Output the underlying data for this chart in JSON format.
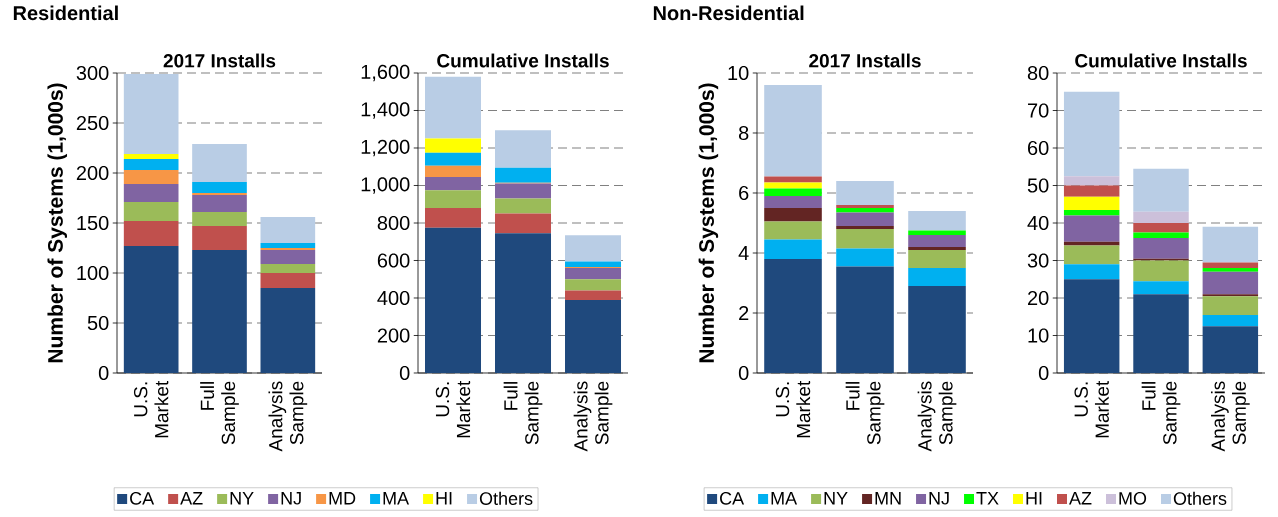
{
  "chart_data": [
    {
      "type": "bar",
      "stacked": true,
      "title": "2017 Installs",
      "ylabel": "Number of Systems (1,000s)",
      "annotations": [
        "Residential"
      ],
      "categories": [
        "U.S. Market",
        "Full Sample",
        "Analysis Sample"
      ],
      "ylim": [
        0,
        300
      ],
      "yticks": [
        0,
        50,
        100,
        150,
        200,
        250,
        300
      ],
      "grid": "y",
      "legend": "bottom",
      "series": [
        {
          "name": "CA",
          "color": "#1f497d",
          "values": [
            127,
            123,
            85
          ]
        },
        {
          "name": "AZ",
          "color": "#c0504d",
          "values": [
            25,
            24,
            15
          ]
        },
        {
          "name": "NY",
          "color": "#9bbb59",
          "values": [
            19,
            14,
            9
          ]
        },
        {
          "name": "NJ",
          "color": "#8064a2",
          "values": [
            18,
            17,
            14
          ]
        },
        {
          "name": "MD",
          "color": "#f79646",
          "values": [
            14,
            2,
            2
          ]
        },
        {
          "name": "MA",
          "color": "#00b0f0",
          "values": [
            11,
            11,
            5
          ]
        },
        {
          "name": "HI",
          "color": "#ffff00",
          "values": [
            5,
            0,
            0
          ]
        },
        {
          "name": "Others",
          "color": "#b9cde5",
          "values": [
            80,
            38,
            26
          ]
        }
      ]
    },
    {
      "type": "bar",
      "stacked": true,
      "title": "Cumulative Installs",
      "categories": [
        "U.S. Market",
        "Full Sample",
        "Analysis Sample"
      ],
      "ylim": [
        0,
        1600
      ],
      "yticks": [
        0,
        200,
        400,
        600,
        800,
        {
          "value": 1000,
          "label": "1,000"
        },
        {
          "value": 1200,
          "label": "1,200"
        },
        {
          "value": 1400,
          "label": "1,400"
        },
        {
          "value": 1600,
          "label": "1,600"
        }
      ],
      "grid": "y",
      "series": [
        {
          "color": "#1f497d",
          "values": [
            775,
            745,
            390
          ]
        },
        {
          "color": "#c0504d",
          "values": [
            105,
            105,
            50
          ]
        },
        {
          "color": "#9bbb59",
          "values": [
            95,
            80,
            60
          ]
        },
        {
          "color": "#8064a2",
          "values": [
            70,
            80,
            60
          ]
        },
        {
          "color": "#f79646",
          "values": [
            60,
            5,
            5
          ]
        },
        {
          "color": "#00b0f0",
          "values": [
            70,
            80,
            30
          ]
        },
        {
          "color": "#ffff00",
          "values": [
            75,
            0,
            0
          ]
        },
        {
          "color": "#b9cde5",
          "values": [
            330,
            200,
            140
          ]
        }
      ]
    },
    {
      "type": "bar",
      "stacked": true,
      "title": "2017 Installs",
      "ylabel": "Number of Systems (1,000s)",
      "annotations": [
        "Non-Residential"
      ],
      "categories": [
        "U.S. Market",
        "Full Sample",
        "Analysis Sample"
      ],
      "ylim": [
        0,
        10
      ],
      "yticks": [
        0,
        2,
        4,
        6,
        8,
        10
      ],
      "grid": "y",
      "legend": "bottom",
      "series": [
        {
          "name": "CA",
          "color": "#1f497d",
          "values": [
            3.8,
            3.55,
            2.9
          ]
        },
        {
          "name": "MA",
          "color": "#00b0f0",
          "values": [
            0.65,
            0.6,
            0.6
          ]
        },
        {
          "name": "NY",
          "color": "#9bbb59",
          "values": [
            0.6,
            0.65,
            0.6
          ]
        },
        {
          "name": "MN",
          "color": "#632523",
          "values": [
            0.45,
            0.1,
            0.1
          ]
        },
        {
          "name": "NJ",
          "color": "#8064a2",
          "values": [
            0.4,
            0.45,
            0.4
          ]
        },
        {
          "name": "TX",
          "color": "#00ff00",
          "values": [
            0.25,
            0.15,
            0.15
          ]
        },
        {
          "name": "HI",
          "color": "#ffff00",
          "values": [
            0.2,
            0,
            0
          ]
        },
        {
          "name": "AZ",
          "color": "#c0504d",
          "values": [
            0.2,
            0.1,
            0
          ]
        },
        {
          "name": "MO",
          "color": "#ccc0da",
          "values": [
            0,
            0,
            0
          ]
        },
        {
          "name": "Others",
          "color": "#b9cde5",
          "values": [
            3.05,
            0.8,
            0.65
          ]
        }
      ]
    },
    {
      "type": "bar",
      "stacked": true,
      "title": "Cumulative Installs",
      "categories": [
        "U.S. Market",
        "Full Sample",
        "Analysis Sample"
      ],
      "ylim": [
        0,
        80
      ],
      "yticks": [
        0,
        10,
        20,
        30,
        40,
        50,
        60,
        70,
        80
      ],
      "grid": "y",
      "series": [
        {
          "color": "#1f497d",
          "values": [
            25,
            21,
            12.5
          ]
        },
        {
          "color": "#00b0f0",
          "values": [
            4,
            3.5,
            3
          ]
        },
        {
          "color": "#9bbb59",
          "values": [
            5,
            5.5,
            5
          ]
        },
        {
          "color": "#632523",
          "values": [
            1,
            0.5,
            0.5
          ]
        },
        {
          "color": "#8064a2",
          "values": [
            7,
            5.5,
            6
          ]
        },
        {
          "color": "#00ff00",
          "values": [
            1.5,
            1.5,
            1
          ]
        },
        {
          "color": "#ffff00",
          "values": [
            3.5,
            0,
            0
          ]
        },
        {
          "color": "#c0504d",
          "values": [
            3,
            2.5,
            1.5
          ]
        },
        {
          "color": "#ccc0da",
          "values": [
            2.5,
            3,
            0
          ]
        },
        {
          "color": "#b9cde5",
          "values": [
            22.5,
            11.5,
            9.5
          ]
        }
      ]
    }
  ]
}
